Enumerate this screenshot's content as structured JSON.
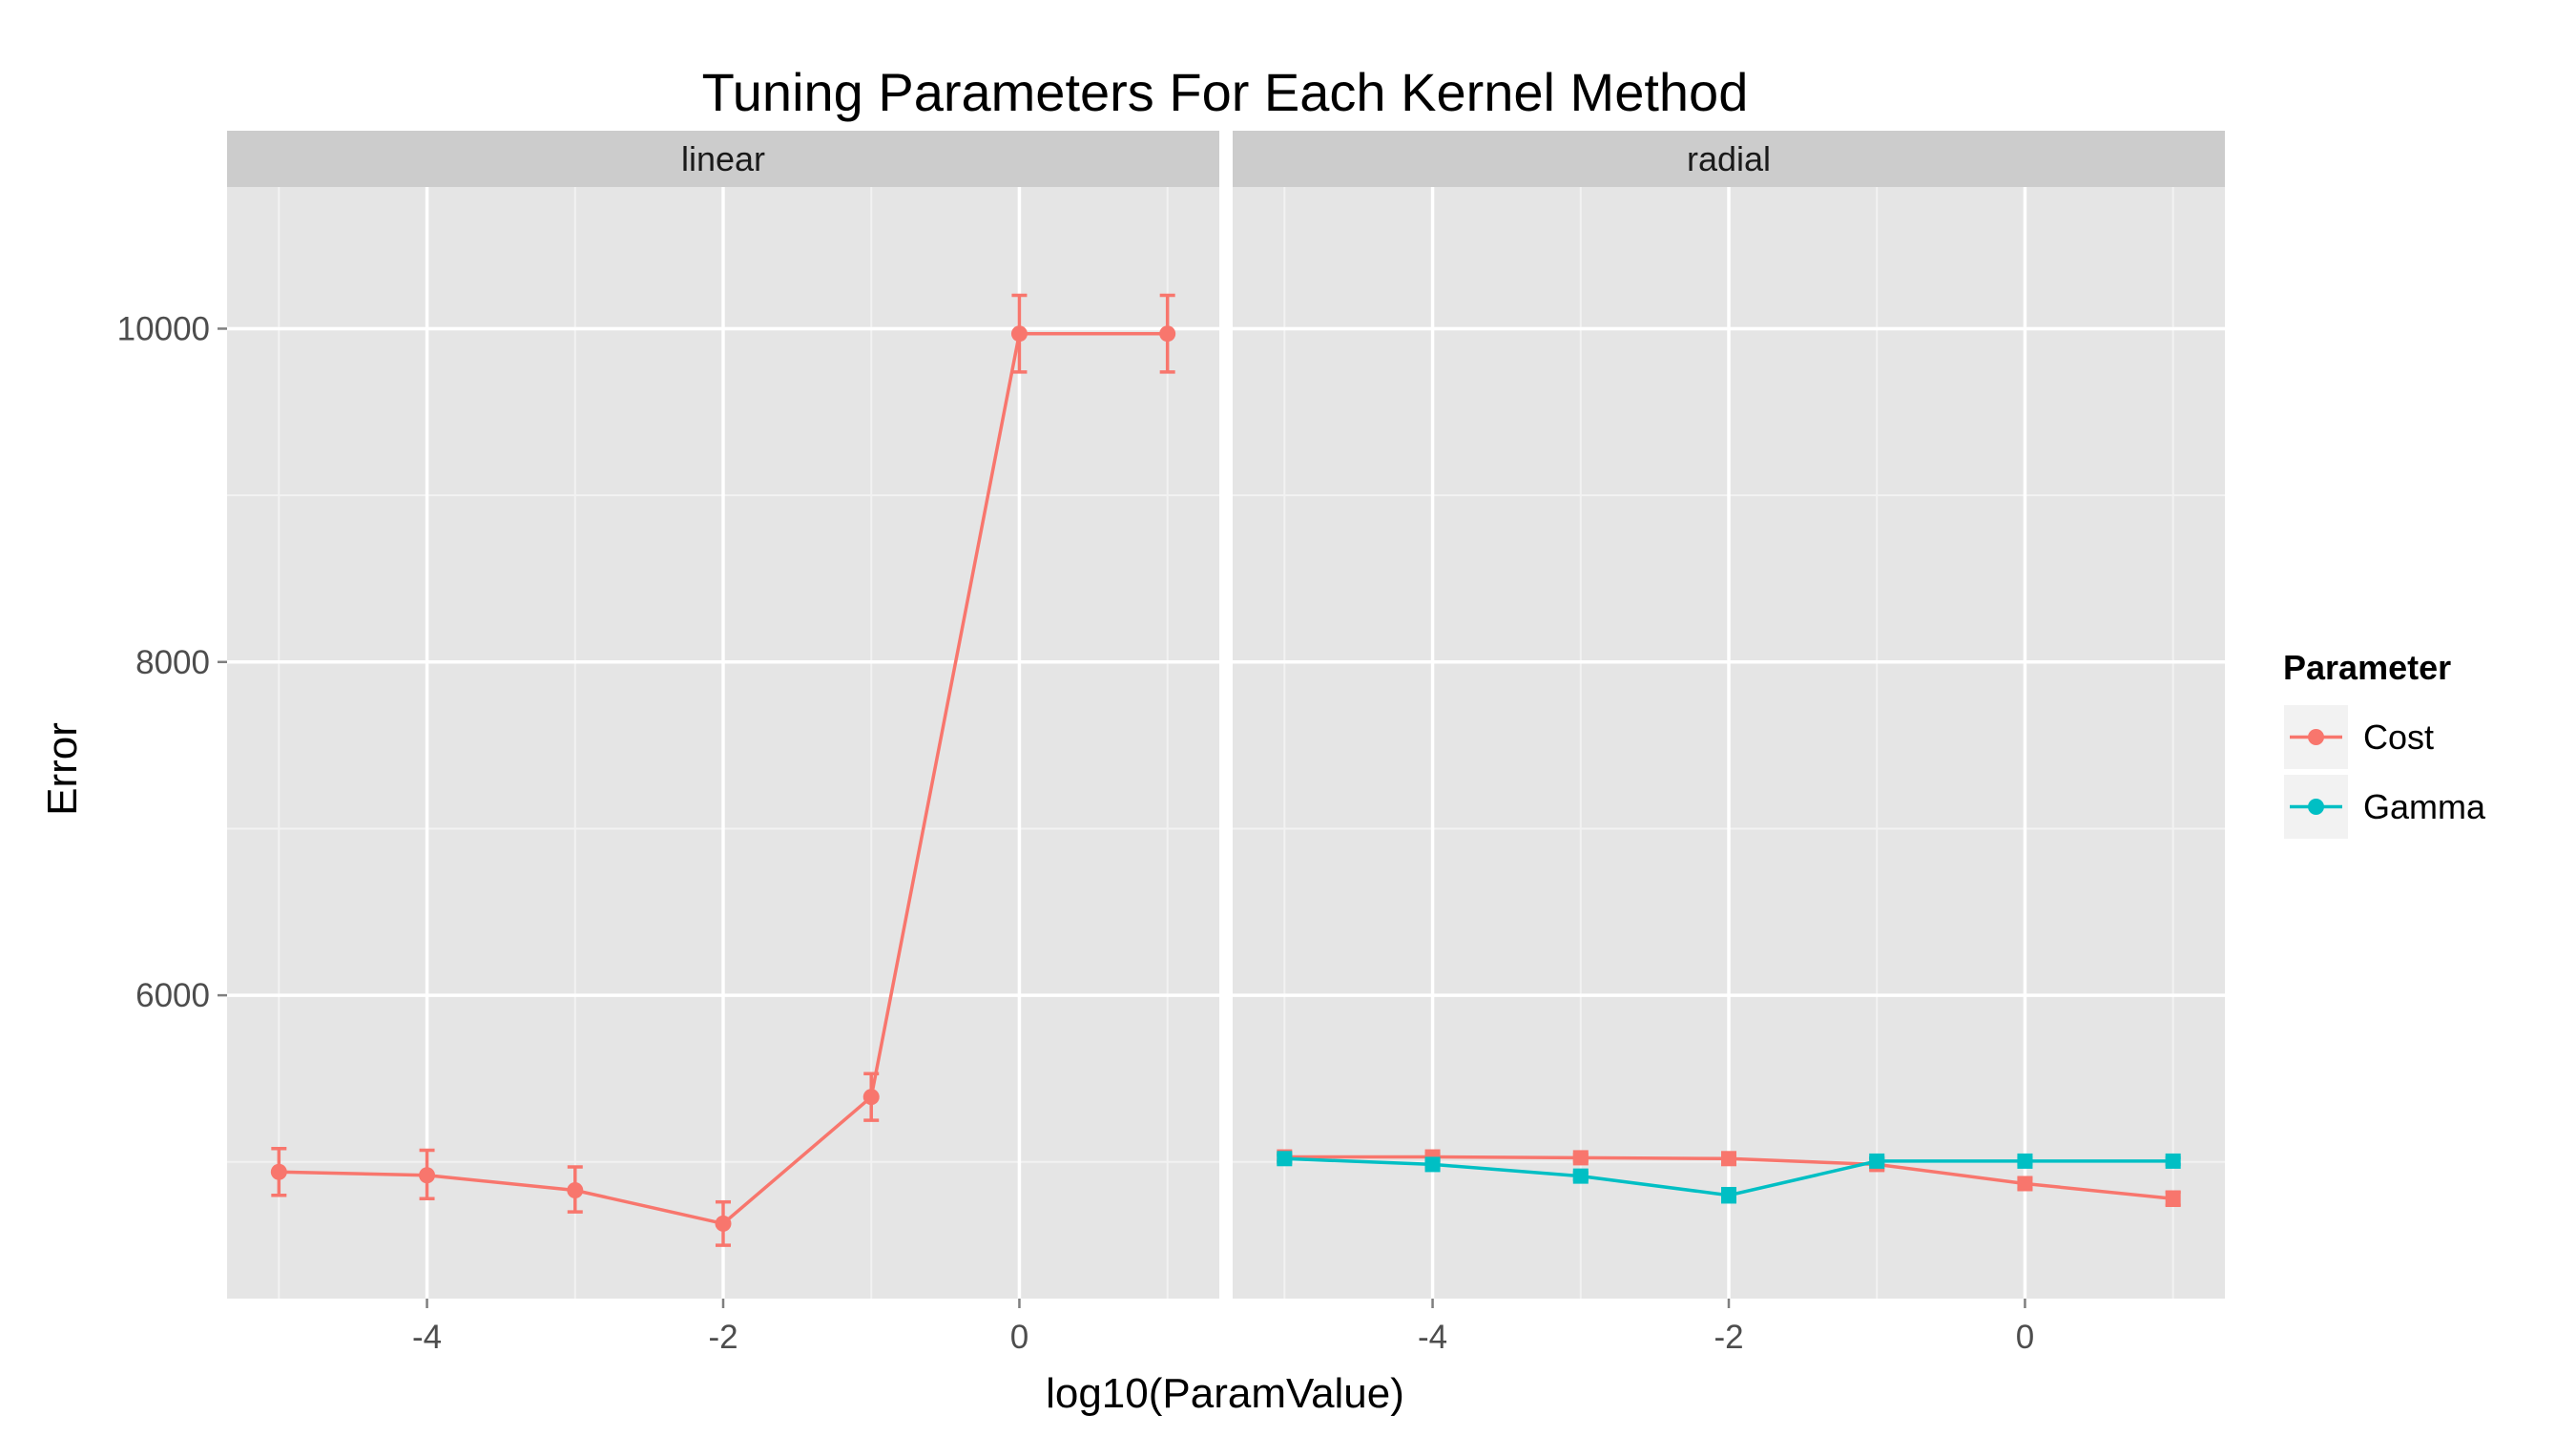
{
  "chart_data": {
    "type": "line",
    "title": "Tuning Parameters For Each Kernel Method",
    "xlabel": "log10(ParamValue)",
    "ylabel": "Error",
    "xlim": [
      -5.35,
      1.35
    ],
    "ylim": [
      4180,
      10850
    ],
    "x_ticks": [
      -4,
      -2,
      0
    ],
    "x_tick_labels": [
      "-4",
      "-2",
      "0"
    ],
    "y_ticks": [
      6000,
      8000,
      10000
    ],
    "y_tick_labels": [
      "6000",
      "8000",
      "10000"
    ],
    "grid": true,
    "legend": {
      "title": "Parameter",
      "position": "right",
      "entries": [
        {
          "name": "Cost",
          "color": "#F8766D"
        },
        {
          "name": "Gamma",
          "color": "#00BFC4"
        }
      ]
    },
    "panels": [
      {
        "label": "linear",
        "series": [
          {
            "name": "Cost",
            "color": "#F8766D",
            "marker": "circle",
            "x": [
              -5,
              -4,
              -3,
              -2,
              -1,
              0,
              1
            ],
            "y": [
              4940,
              4920,
              4830,
              4630,
              5390,
              9970,
              9970
            ],
            "err_low": [
              4800,
              4780,
              4700,
              4500,
              5250,
              9740,
              9740
            ],
            "err_high": [
              5080,
              5070,
              4970,
              4760,
              5530,
              10200,
              10200
            ]
          }
        ]
      },
      {
        "label": "radial",
        "series": [
          {
            "name": "Cost",
            "color": "#F8766D",
            "marker": "square",
            "x": [
              -5,
              -4,
              -3,
              -2,
              -1,
              0,
              1
            ],
            "y": [
              5030,
              5030,
              5025,
              5020,
              4985,
              4870,
              4780
            ],
            "err_low": [
              5010,
              5010,
              5005,
              5000,
              4955,
              4840,
              4740
            ],
            "err_high": [
              5050,
              5050,
              5045,
              5040,
              5015,
              4900,
              4820
            ]
          },
          {
            "name": "Gamma",
            "color": "#00BFC4",
            "marker": "square",
            "x": [
              -5,
              -4,
              -3,
              -2,
              -1,
              0,
              1
            ],
            "y": [
              5020,
              4985,
              4915,
              4800,
              5005,
              5005,
              5005
            ],
            "err_low": [
              5000,
              4965,
              4895,
              4760,
              4985,
              4985,
              4985
            ],
            "err_high": [
              5040,
              5005,
              4935,
              4840,
              5025,
              5025,
              5025
            ]
          }
        ]
      }
    ]
  }
}
